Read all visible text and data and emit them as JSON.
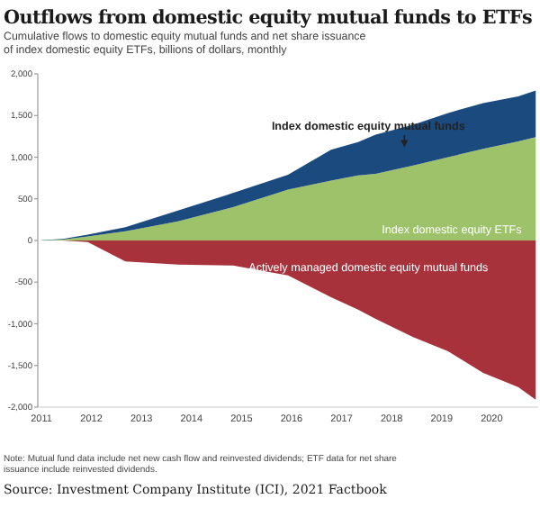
{
  "chart_data": [
    {
      "type": "area",
      "stacked": true,
      "title": "Outflows from domestic equity mutual funds to ETFs",
      "subtitle": "Cumulative flows to domestic equity mutual funds and net share issuance of index domestic equity ETFs, billions of dollars, monthly",
      "x": [
        2011,
        2011.5,
        2012,
        2012.75,
        2013.8,
        2014.9,
        2016,
        2016.86,
        2017.4,
        2017.75,
        2018.5,
        2019.2,
        2019.9,
        2020.6,
        2020.95
      ],
      "series": [
        {
          "name": "Index domestic equity ETFs",
          "color": "#9dc26a",
          "values": [
            0,
            10,
            50,
            110,
            230,
            400,
            610,
            720,
            780,
            800,
            900,
            1000,
            1100,
            1190,
            1240
          ]
        },
        {
          "name": "Index domestic equity mutual funds",
          "color": "#1b4a7e",
          "values": [
            0,
            10,
            20,
            50,
            130,
            170,
            180,
            370,
            400,
            470,
            490,
            530,
            550,
            540,
            560
          ]
        }
      ],
      "xlim": [
        2011,
        2021
      ],
      "xticks": [
        2011,
        2012,
        2013,
        2014,
        2015,
        2016,
        2017,
        2018,
        2019,
        2020
      ],
      "ylim": [
        -2000,
        2000
      ],
      "yticks": [
        {
          "value": -2000,
          "label": "-2,000"
        },
        {
          "value": -1500,
          "label": "-1,500"
        },
        {
          "value": -1000,
          "label": "-1,000"
        },
        -500,
        0,
        500,
        {
          "value": 1000,
          "label": "1,000"
        },
        {
          "value": 1500,
          "label": "1,500"
        },
        {
          "value": 2000,
          "label": "2,000"
        }
      ],
      "annotations": [
        "Note: Mutual fund data include net new cash flow and reinvested dividends; ETF data for net share issuance include reinvested dividends.",
        "Source: Investment Company Institute (ICI), 2021 Factbook"
      ]
    },
    {
      "type": "area",
      "x": [
        2011,
        2011.5,
        2012,
        2012.75,
        2013.8,
        2014.9,
        2016,
        2016.86,
        2017.4,
        2017.75,
        2018.5,
        2019.2,
        2019.9,
        2020.6,
        2020.95
      ],
      "series": [
        {
          "name": "Actively managed domestic equity mutual funds",
          "color": "#a8323c",
          "values": [
            0,
            0,
            -20,
            -250,
            -290,
            -300,
            -420,
            -680,
            -830,
            -940,
            -1160,
            -1330,
            -1590,
            -1760,
            -1910
          ]
        }
      ],
      "xlim": [
        2011,
        2021
      ],
      "ylim": [
        -2000,
        2000
      ],
      "tick_labels": false
    }
  ]
}
